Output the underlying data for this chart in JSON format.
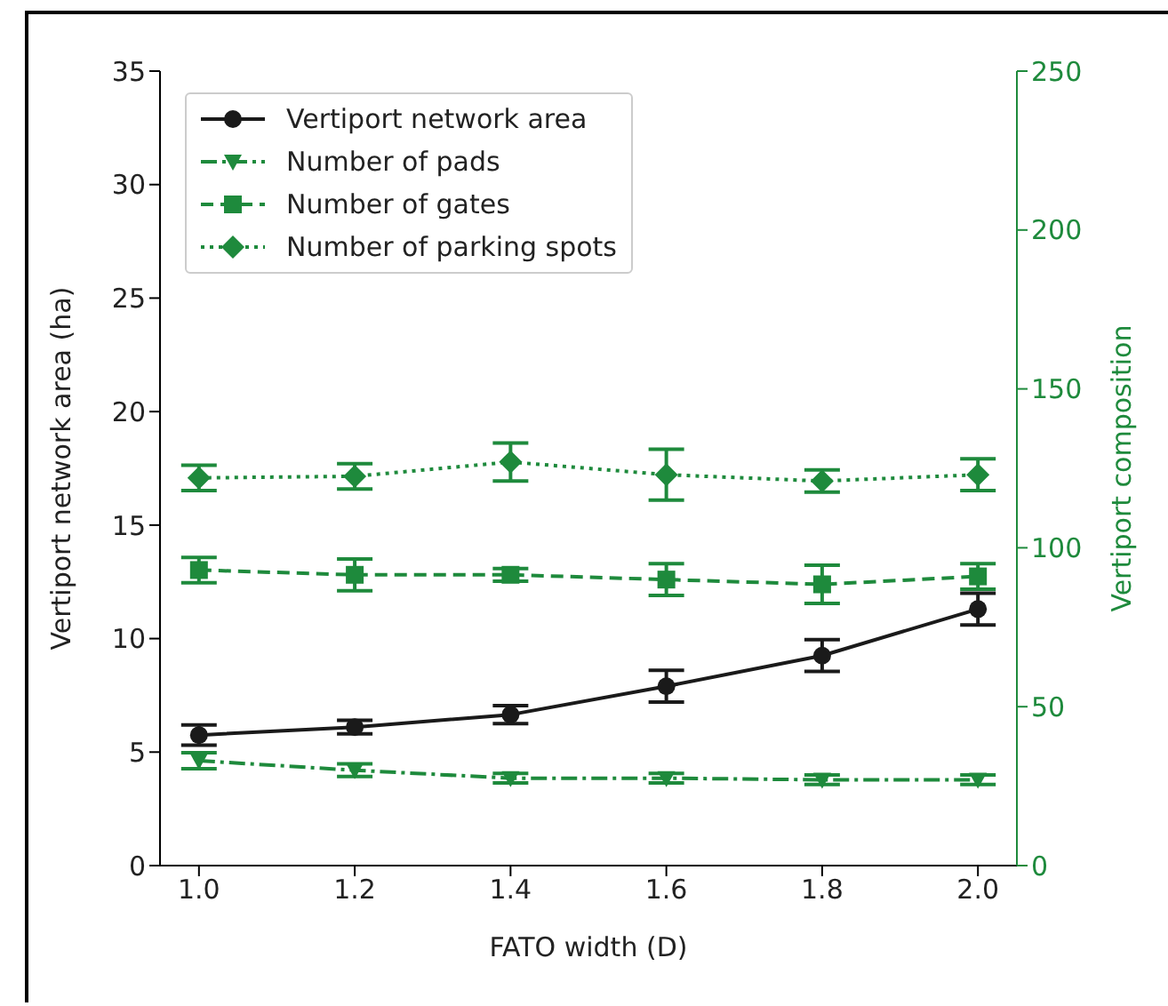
{
  "chart_data": {
    "type": "line",
    "xlabel": "FATO width (D)",
    "ylabel": "Vertiport network area (ha)",
    "y2label": "Vertiport composition",
    "x": [
      1.0,
      1.2,
      1.4,
      1.6,
      1.8,
      2.0
    ],
    "xlim": [
      0.95,
      2.05
    ],
    "xticks": [
      {
        "value": 1.0,
        "label": "1.0"
      },
      {
        "value": 1.2,
        "label": "1.2"
      },
      {
        "value": 1.4,
        "label": "1.4"
      },
      {
        "value": 1.6,
        "label": "1.6"
      },
      {
        "value": 1.8,
        "label": "1.8"
      },
      {
        "value": 2.0,
        "label": "2.0"
      }
    ],
    "ylim": [
      0,
      35
    ],
    "yticks": [
      0,
      5,
      10,
      15,
      20,
      25,
      30,
      35
    ],
    "y2lim": [
      0,
      250
    ],
    "y2ticks": [
      0,
      50,
      100,
      150,
      200,
      250
    ],
    "legend": "top left",
    "series": [
      {
        "name": "Vertiport network area",
        "color": "#1a1a1a",
        "marker": "circle",
        "line_style": "solid",
        "values": [
          5.75,
          6.1,
          6.65,
          7.9,
          9.25,
          11.3
        ],
        "errors": [
          0.45,
          0.3,
          0.4,
          0.7,
          0.7,
          0.7
        ]
      },
      {
        "name": "Number of pads",
        "color": "#1e8a3c",
        "marker": "triangle",
        "line_style": "dashdot",
        "axis": "y2",
        "values": [
          33,
          30,
          27.5,
          27.5,
          27,
          27
        ],
        "errors": [
          2.5,
          2,
          1.5,
          1.5,
          1.5,
          1.5
        ]
      },
      {
        "name": "Number of gates",
        "color": "#1e8a3c",
        "marker": "square",
        "line_style": "dashed",
        "axis": "y2",
        "values": [
          93,
          91.5,
          91.5,
          90,
          88.5,
          91
        ],
        "errors": [
          4,
          5,
          2,
          5,
          6,
          4
        ]
      },
      {
        "name": "Number of parking spots",
        "color": "#1e8a3c",
        "marker": "diamond",
        "line_style": "dotted",
        "axis": "y2",
        "values": [
          122,
          122.5,
          127,
          123,
          121,
          123
        ],
        "errors": [
          4,
          4,
          6,
          8,
          3.5,
          5
        ]
      }
    ]
  }
}
